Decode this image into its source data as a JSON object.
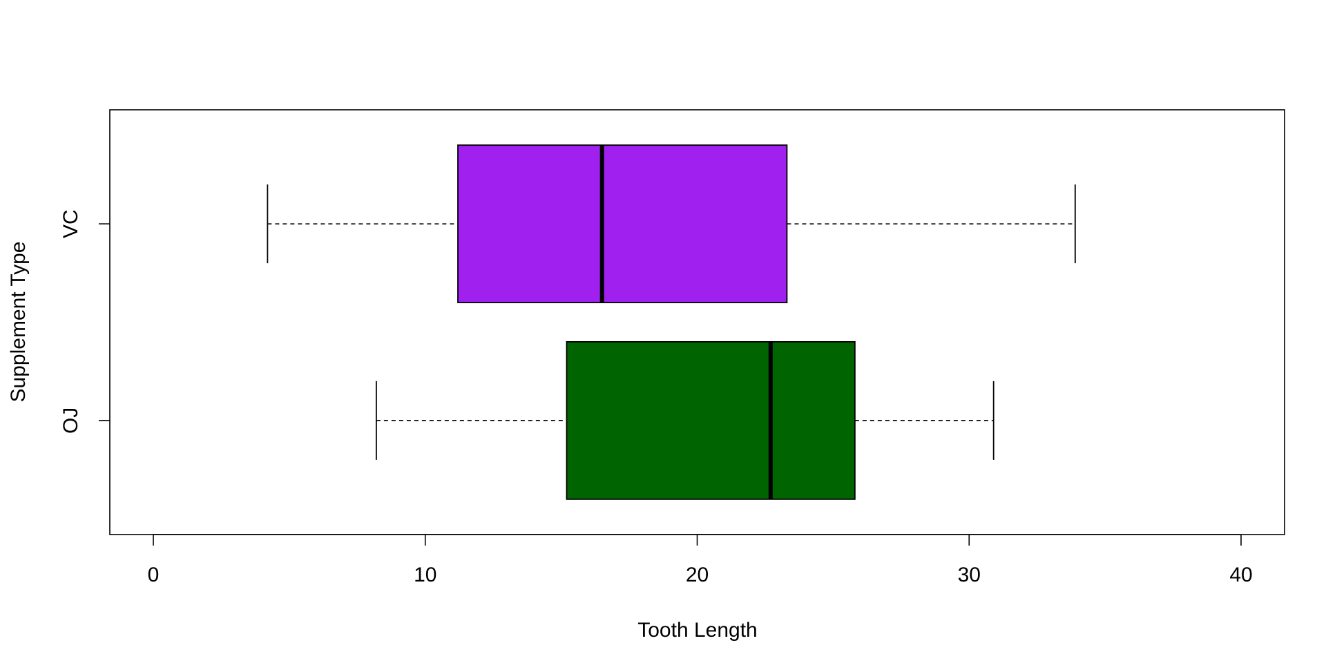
{
  "chart_data": {
    "type": "boxplot",
    "orientation": "horizontal",
    "title": "",
    "xlabel": "Tooth Length",
    "ylabel": "Supplement Type",
    "xlim": [
      -1.6,
      41.6
    ],
    "xticks": [
      0,
      10,
      20,
      30,
      40
    ],
    "categories": [
      "OJ",
      "VC"
    ],
    "boxes": [
      {
        "category": "OJ",
        "min": 8.2,
        "q1": 15.2,
        "median": 22.7,
        "q3": 25.8,
        "max": 30.9,
        "color": "#006400"
      },
      {
        "category": "VC",
        "min": 4.2,
        "q1": 11.2,
        "median": 16.5,
        "q3": 23.3,
        "max": 33.9,
        "color": "#A020F0"
      }
    ],
    "grid": false,
    "legend": "none"
  }
}
